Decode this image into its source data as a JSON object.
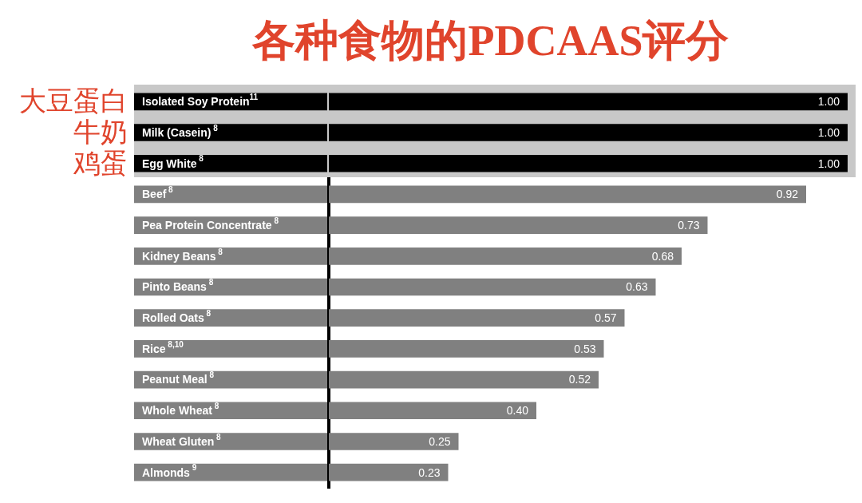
{
  "chart_data": {
    "type": "bar",
    "orientation": "horizontal",
    "title": "各种食物的PDCAAS评分",
    "categories": [
      "Isolated Soy Protein$^{11}$",
      "Milk (Casein)$^{ 8}$",
      "Egg White$^{ 8}$",
      "Beef$^{ 8}$",
      "Pea Protein Concentrate$^{ 8}$",
      "Kidney Beans$^{ 8}$",
      "Pinto Beans$^{ 8}$",
      "Rolled Oats$^{ 8}$",
      "Rice$^{ 8,10}$",
      "Peanut Meal$^{ 8}$",
      "Whole Wheat$^{ 8}$",
      "Wheat Gluten$^{ 8}$",
      "Almonds$^{ 9}$"
    ],
    "values": [
      1.0,
      1.0,
      1.0,
      0.92,
      0.73,
      0.68,
      0.63,
      0.57,
      0.53,
      0.52,
      0.4,
      0.25,
      0.23
    ],
    "value_labels": [
      "1.00",
      "1.00",
      "1.00",
      "0.92",
      "0.73",
      "0.68",
      "0.63",
      "0.57",
      "0.53",
      "0.52",
      "0.40",
      "0.25",
      "0.23"
    ],
    "colors": [
      "#000000",
      "#000000",
      "#000000",
      "#808080",
      "#808080",
      "#808080",
      "#808080",
      "#808080",
      "#808080",
      "#808080",
      "#808080",
      "#808080",
      "#808080"
    ],
    "xlim": [
      0,
      1
    ],
    "tick_labels": "y",
    "grid": false,
    "legend": false,
    "bands": [
      {
        "axis": "y",
        "from": "Isolated Soy Protein$^{11}$",
        "to": "Egg White$^{ 8}$",
        "color": "#c8c8c8"
      }
    ],
    "annotations": [
      "大豆蛋白",
      "牛奶",
      "鸡蛋"
    ]
  }
}
